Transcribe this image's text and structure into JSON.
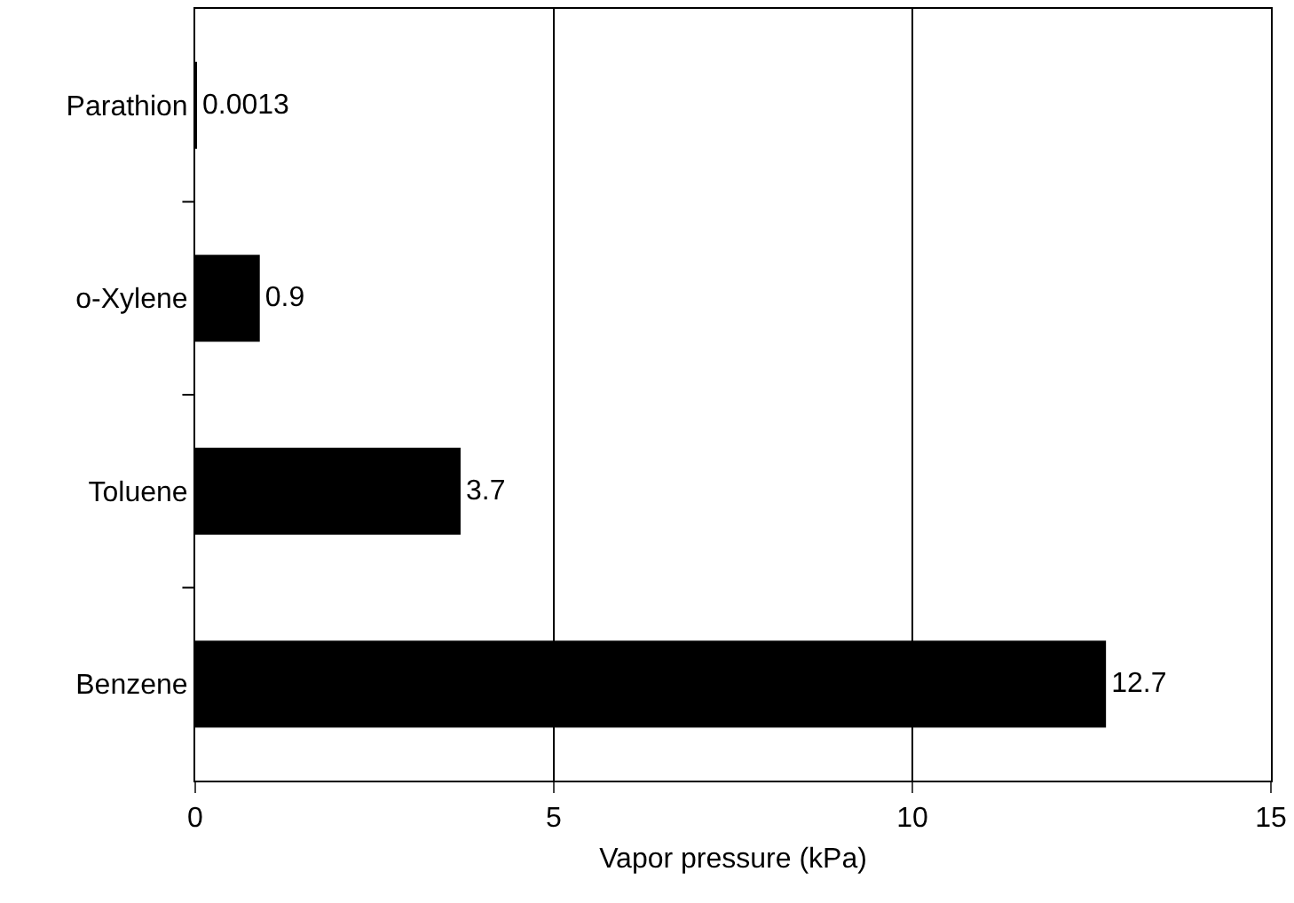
{
  "chart_data": {
    "type": "bar",
    "orientation": "horizontal",
    "xlabel": "Vapor pressure (kPa)",
    "categories": [
      "Parathion",
      "o-Xylene",
      "Toluene",
      "Benzene"
    ],
    "values": [
      0.0013,
      0.9,
      3.7,
      12.7
    ],
    "color": "#000000",
    "data_labels": true,
    "xlim": [
      0,
      15
    ],
    "xticks": [
      0,
      5,
      10,
      15
    ],
    "grid": "x"
  }
}
